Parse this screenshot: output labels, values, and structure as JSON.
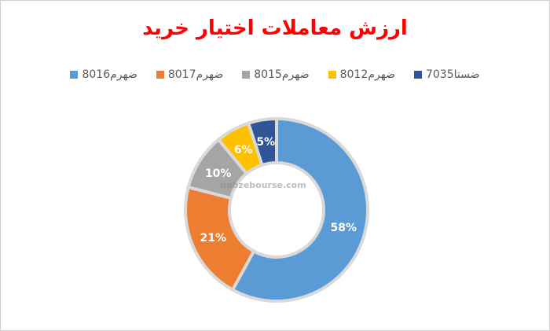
{
  "chart_data": {
    "type": "pie",
    "title": "ارزش معاملات اختیار خرید",
    "colors": {
      "title": "#ff0000",
      "legend_text": "#595959",
      "slice_border": "#d9d9d9"
    },
    "slices": [
      {
        "name": "ضستا7035",
        "value": 5,
        "label": "5%",
        "color": "#2f5597"
      },
      {
        "name": "ضهرم8012",
        "value": 6,
        "label": "6%",
        "color": "#ffc000"
      },
      {
        "name": "ضهرم8015",
        "value": 10,
        "label": "10%",
        "color": "#a5a5a5"
      },
      {
        "name": "ضهرم8017",
        "value": 21,
        "label": "21%",
        "color": "#ed7d31"
      },
      {
        "name": "ضهرم8016",
        "value": 58,
        "label": "58%",
        "color": "#5b9bd5"
      }
    ],
    "legend": {
      "placement": "top",
      "order": [
        "ضهرم8016",
        "ضهرم8017",
        "ضهرم8015",
        "ضهرم8012",
        "ضستا7035"
      ]
    },
    "donut": true
  },
  "watermark": {
    "text": "nabzebourse.com"
  }
}
